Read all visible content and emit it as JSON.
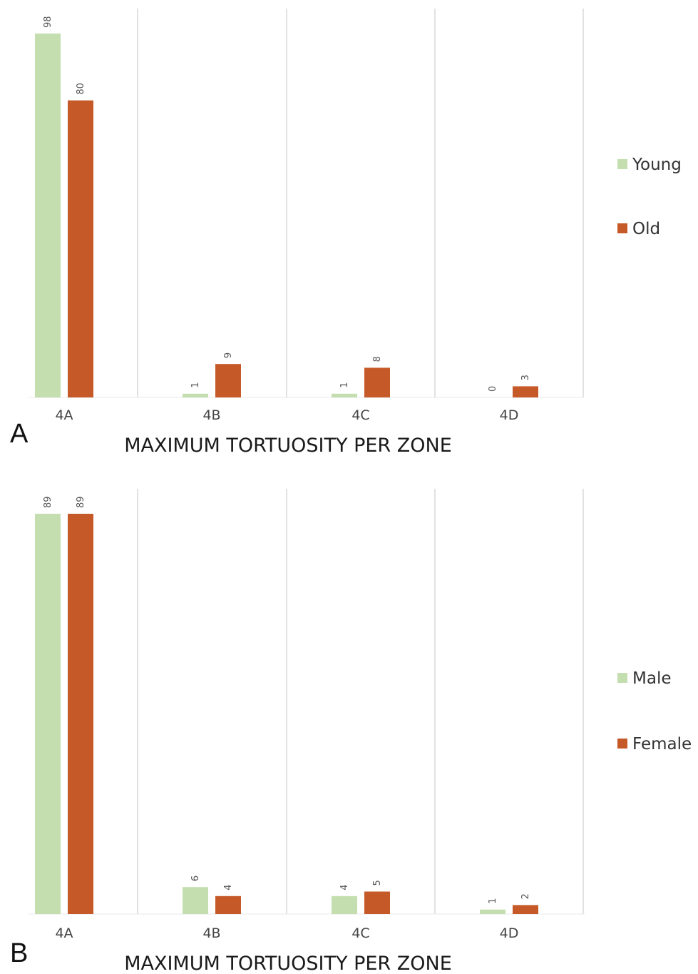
{
  "chart_data": [
    {
      "panel": "A",
      "type": "bar",
      "title": "MAXIMUM TORTUOSITY PER ZONE",
      "categories": [
        "4A",
        "4B",
        "4C",
        "4D"
      ],
      "series": [
        {
          "name": "Young",
          "color": "#c5deb0",
          "values": [
            98,
            1,
            1,
            0
          ]
        },
        {
          "name": "Old",
          "color": "#c55a28",
          "values": [
            80,
            9,
            8,
            3
          ]
        }
      ],
      "ylim": [
        0,
        98
      ],
      "grid": "vertical separators",
      "legend": "right"
    },
    {
      "panel": "B",
      "type": "bar",
      "title": "MAXIMUM TORTUOSITY PER ZONE",
      "categories": [
        "4A",
        "4B",
        "4C",
        "4D"
      ],
      "series": [
        {
          "name": "Male",
          "color": "#c5deb0",
          "values": [
            89,
            6,
            4,
            1
          ]
        },
        {
          "name": "Female",
          "color": "#c55a28",
          "values": [
            89,
            4,
            5,
            2
          ]
        }
      ],
      "ylim": [
        0,
        89
      ],
      "grid": "vertical separators",
      "legend": "right"
    }
  ]
}
